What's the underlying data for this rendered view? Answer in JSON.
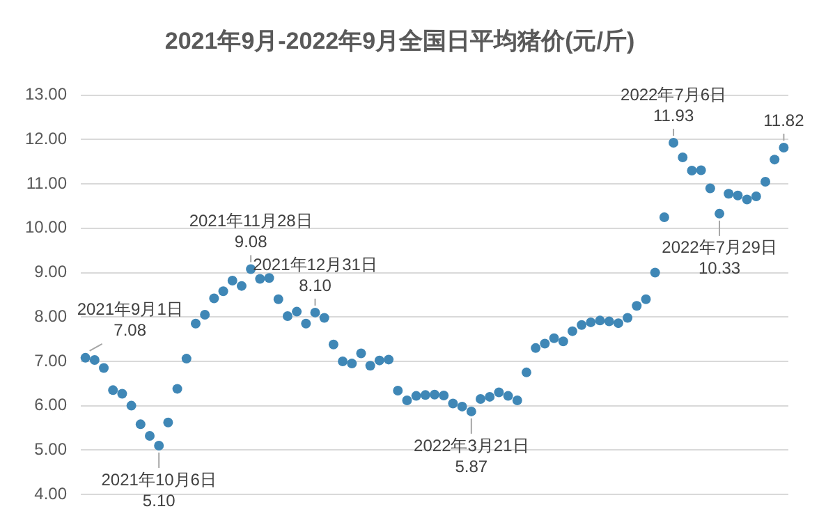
{
  "chart_data": {
    "type": "scatter",
    "title": "2021年9月-2022年9月全国日平均猪价(元/斤)",
    "categories": [
      null,
      null,
      null,
      null,
      null,
      null,
      null,
      null,
      null,
      null,
      null,
      null,
      null,
      null,
      null,
      null,
      null,
      null,
      null,
      null,
      null,
      null,
      null,
      null,
      null,
      null,
      null,
      null,
      null,
      null,
      null,
      null,
      null,
      null,
      null,
      null,
      null,
      null,
      null,
      null,
      null,
      null,
      null,
      null,
      null,
      null,
      null,
      null,
      null,
      null,
      null,
      null,
      null,
      null,
      null,
      null,
      null,
      null,
      null,
      null,
      null,
      null,
      null,
      null,
      null,
      null,
      null,
      null,
      null,
      null,
      null,
      null,
      null,
      null,
      null,
      null,
      null
    ],
    "series": [
      {
        "color": "#3f87b6",
        "values": [
          7.08,
          7.03,
          6.85,
          6.35,
          6.27,
          6.0,
          5.58,
          5.32,
          5.1,
          5.62,
          6.38,
          7.06,
          7.85,
          8.05,
          8.42,
          8.58,
          8.82,
          8.7,
          9.08,
          8.86,
          8.88,
          8.4,
          8.02,
          8.12,
          7.85,
          8.1,
          7.98,
          7.38,
          7.0,
          6.95,
          7.18,
          6.9,
          7.02,
          7.04,
          6.34,
          6.12,
          6.22,
          6.24,
          6.25,
          6.23,
          6.05,
          5.98,
          5.87,
          6.15,
          6.2,
          6.3,
          6.22,
          6.12,
          6.75,
          7.3,
          7.4,
          7.52,
          7.45,
          7.68,
          7.82,
          7.88,
          7.92,
          7.9,
          7.86,
          7.98,
          8.25,
          8.4,
          9.0,
          10.25,
          11.93,
          11.6,
          11.3,
          11.31,
          10.9,
          10.33,
          10.78,
          10.74,
          10.65,
          10.72,
          11.05,
          11.55,
          11.82
        ]
      }
    ],
    "ylim": [
      4,
      13
    ],
    "yticks": [
      {
        "value": 4,
        "label": "4.00"
      },
      {
        "value": 5,
        "label": "5.00"
      },
      {
        "value": 6,
        "label": "6.00"
      },
      {
        "value": 7,
        "label": "7.00"
      },
      {
        "value": 8,
        "label": "8.00"
      },
      {
        "value": 9,
        "label": "9.00"
      },
      {
        "value": 10,
        "label": "10.00"
      },
      {
        "value": 11,
        "label": "11.00"
      },
      {
        "value": 12,
        "label": "12.00"
      },
      {
        "value": 13,
        "label": "13.00"
      }
    ],
    "grid": "y",
    "marker": "circle",
    "tick_labels": "y",
    "annotations": [
      "2021年9月1日\n7.08",
      {
        "text": "2021年10月6日\n5.10",
        "y": 5.1
      },
      {
        "text": "2021年11月28日\n9.08",
        "y": 9.08
      },
      {
        "text": "2021年12月31日\n8.10",
        "y": 8.1
      },
      {
        "text": "2022年3月21日\n5.87",
        "y": 5.87
      },
      {
        "text": "2022年7月6日\n11.93",
        "y": 11.93
      },
      {
        "text": "2022年7月29日\n10.33",
        "y": 10.33
      },
      {
        "text": "11.82",
        "y": 11.82
      }
    ]
  }
}
